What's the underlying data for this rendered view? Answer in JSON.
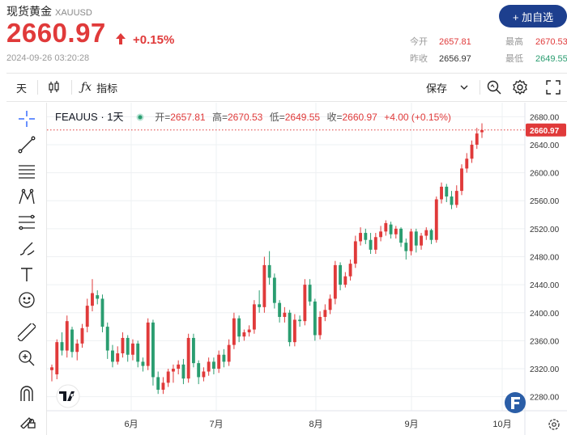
{
  "header": {
    "name": "现货黄金",
    "symbol": "XAUUSD",
    "price": "2660.97",
    "change": "+0.15%",
    "timestamp": "2024-09-26 03:20:28",
    "add_button": "+ 加自选"
  },
  "stats": {
    "open_label": "今开",
    "open_value": "2657.81",
    "prev_label": "昨收",
    "prev_value": "2656.97",
    "high_label": "最高",
    "high_value": "2670.53",
    "low_label": "最低",
    "low_value": "2649.55"
  },
  "toolbar": {
    "interval": "天",
    "indicator_label": "指标",
    "save_label": "保存"
  },
  "legend": {
    "title": "FEAUUS · 1天",
    "open_label": "开=",
    "open": "2657.81",
    "high_label": "高=",
    "high": "2670.53",
    "low_label": "低=",
    "low": "2649.55",
    "close_label": "收=",
    "close": "2660.97",
    "change": "+4.00 (+0.15%)"
  },
  "colors": {
    "up": "#e03a3a",
    "down": "#2a9d70",
    "accent": "#1d3f8e"
  },
  "chart_data": {
    "type": "candlestick",
    "y_ticks": [
      "2680.00",
      "2640.00",
      "2600.00",
      "2560.00",
      "2520.00",
      "2480.00",
      "2440.00",
      "2400.00",
      "2360.00",
      "2320.00",
      "2280.00"
    ],
    "x_ticks": [
      "6月",
      "7月",
      "8月",
      "9月",
      "10月"
    ],
    "last_price_label": "2660.97",
    "last_price": 2660.97,
    "ylim": [
      2260,
      2700
    ],
    "candles": [
      [
        2318,
        2322,
        2302,
        2326
      ],
      [
        2312,
        2358,
        2305,
        2362
      ],
      [
        2358,
        2346,
        2339,
        2372
      ],
      [
        2346,
        2388,
        2336,
        2396
      ],
      [
        2376,
        2344,
        2336,
        2380
      ],
      [
        2344,
        2356,
        2332,
        2362
      ],
      [
        2356,
        2378,
        2350,
        2384
      ],
      [
        2380,
        2410,
        2372,
        2420
      ],
      [
        2410,
        2428,
        2402,
        2448
      ],
      [
        2425,
        2420,
        2412,
        2432
      ],
      [
        2420,
        2380,
        2372,
        2426
      ],
      [
        2380,
        2346,
        2334,
        2386
      ],
      [
        2346,
        2330,
        2322,
        2354
      ],
      [
        2330,
        2342,
        2326,
        2352
      ],
      [
        2342,
        2364,
        2336,
        2372
      ],
      [
        2364,
        2340,
        2330,
        2368
      ],
      [
        2340,
        2356,
        2332,
        2362
      ],
      [
        2356,
        2330,
        2322,
        2360
      ],
      [
        2330,
        2324,
        2316,
        2336
      ],
      [
        2324,
        2386,
        2318,
        2392
      ],
      [
        2386,
        2308,
        2296,
        2390
      ],
      [
        2308,
        2290,
        2284,
        2316
      ],
      [
        2290,
        2300,
        2284,
        2308
      ],
      [
        2300,
        2316,
        2294,
        2320
      ],
      [
        2316,
        2320,
        2300,
        2326
      ],
      [
        2320,
        2326,
        2312,
        2332
      ],
      [
        2326,
        2306,
        2298,
        2334
      ],
      [
        2306,
        2364,
        2300,
        2370
      ],
      [
        2364,
        2328,
        2322,
        2370
      ],
      [
        2328,
        2308,
        2298,
        2332
      ],
      [
        2308,
        2316,
        2302,
        2322
      ],
      [
        2316,
        2330,
        2310,
        2336
      ],
      [
        2330,
        2320,
        2312,
        2336
      ],
      [
        2320,
        2340,
        2314,
        2346
      ],
      [
        2340,
        2330,
        2322,
        2348
      ],
      [
        2330,
        2354,
        2324,
        2362
      ],
      [
        2354,
        2392,
        2348,
        2400
      ],
      [
        2392,
        2366,
        2358,
        2396
      ],
      [
        2366,
        2372,
        2360,
        2376
      ],
      [
        2372,
        2376,
        2366,
        2382
      ],
      [
        2376,
        2412,
        2370,
        2418
      ],
      [
        2412,
        2408,
        2400,
        2432
      ],
      [
        2408,
        2468,
        2400,
        2480
      ],
      [
        2468,
        2450,
        2440,
        2488
      ],
      [
        2450,
        2414,
        2406,
        2456
      ],
      [
        2414,
        2394,
        2386,
        2418
      ],
      [
        2394,
        2400,
        2386,
        2408
      ],
      [
        2400,
        2358,
        2352,
        2404
      ],
      [
        2358,
        2390,
        2352,
        2398
      ],
      [
        2390,
        2388,
        2380,
        2396
      ],
      [
        2388,
        2440,
        2382,
        2448
      ],
      [
        2440,
        2416,
        2410,
        2448
      ],
      [
        2416,
        2368,
        2360,
        2420
      ],
      [
        2368,
        2394,
        2362,
        2402
      ],
      [
        2394,
        2404,
        2388,
        2412
      ],
      [
        2404,
        2420,
        2398,
        2426
      ],
      [
        2420,
        2468,
        2412,
        2474
      ],
      [
        2468,
        2440,
        2432,
        2472
      ],
      [
        2440,
        2452,
        2436,
        2458
      ],
      [
        2452,
        2470,
        2446,
        2476
      ],
      [
        2470,
        2502,
        2464,
        2510
      ],
      [
        2502,
        2514,
        2496,
        2522
      ],
      [
        2514,
        2504,
        2498,
        2520
      ],
      [
        2504,
        2490,
        2484,
        2514
      ],
      [
        2490,
        2508,
        2484,
        2514
      ],
      [
        2508,
        2516,
        2502,
        2524
      ],
      [
        2516,
        2528,
        2510,
        2532
      ],
      [
        2526,
        2512,
        2506,
        2530
      ],
      [
        2512,
        2520,
        2506,
        2524
      ],
      [
        2520,
        2500,
        2494,
        2522
      ],
      [
        2500,
        2488,
        2476,
        2506
      ],
      [
        2488,
        2516,
        2482,
        2520
      ],
      [
        2516,
        2496,
        2486,
        2520
      ],
      [
        2496,
        2510,
        2490,
        2514
      ],
      [
        2510,
        2518,
        2504,
        2522
      ],
      [
        2518,
        2504,
        2498,
        2520
      ],
      [
        2504,
        2562,
        2500,
        2566
      ],
      [
        2562,
        2580,
        2556,
        2586
      ],
      [
        2580,
        2566,
        2558,
        2584
      ],
      [
        2566,
        2554,
        2548,
        2574
      ],
      [
        2554,
        2574,
        2550,
        2582
      ],
      [
        2574,
        2606,
        2568,
        2612
      ],
      [
        2606,
        2620,
        2600,
        2628
      ],
      [
        2620,
        2640,
        2614,
        2646
      ],
      [
        2640,
        2656,
        2634,
        2664
      ],
      [
        2657.81,
        2660.97,
        2649.55,
        2670.53
      ]
    ]
  }
}
